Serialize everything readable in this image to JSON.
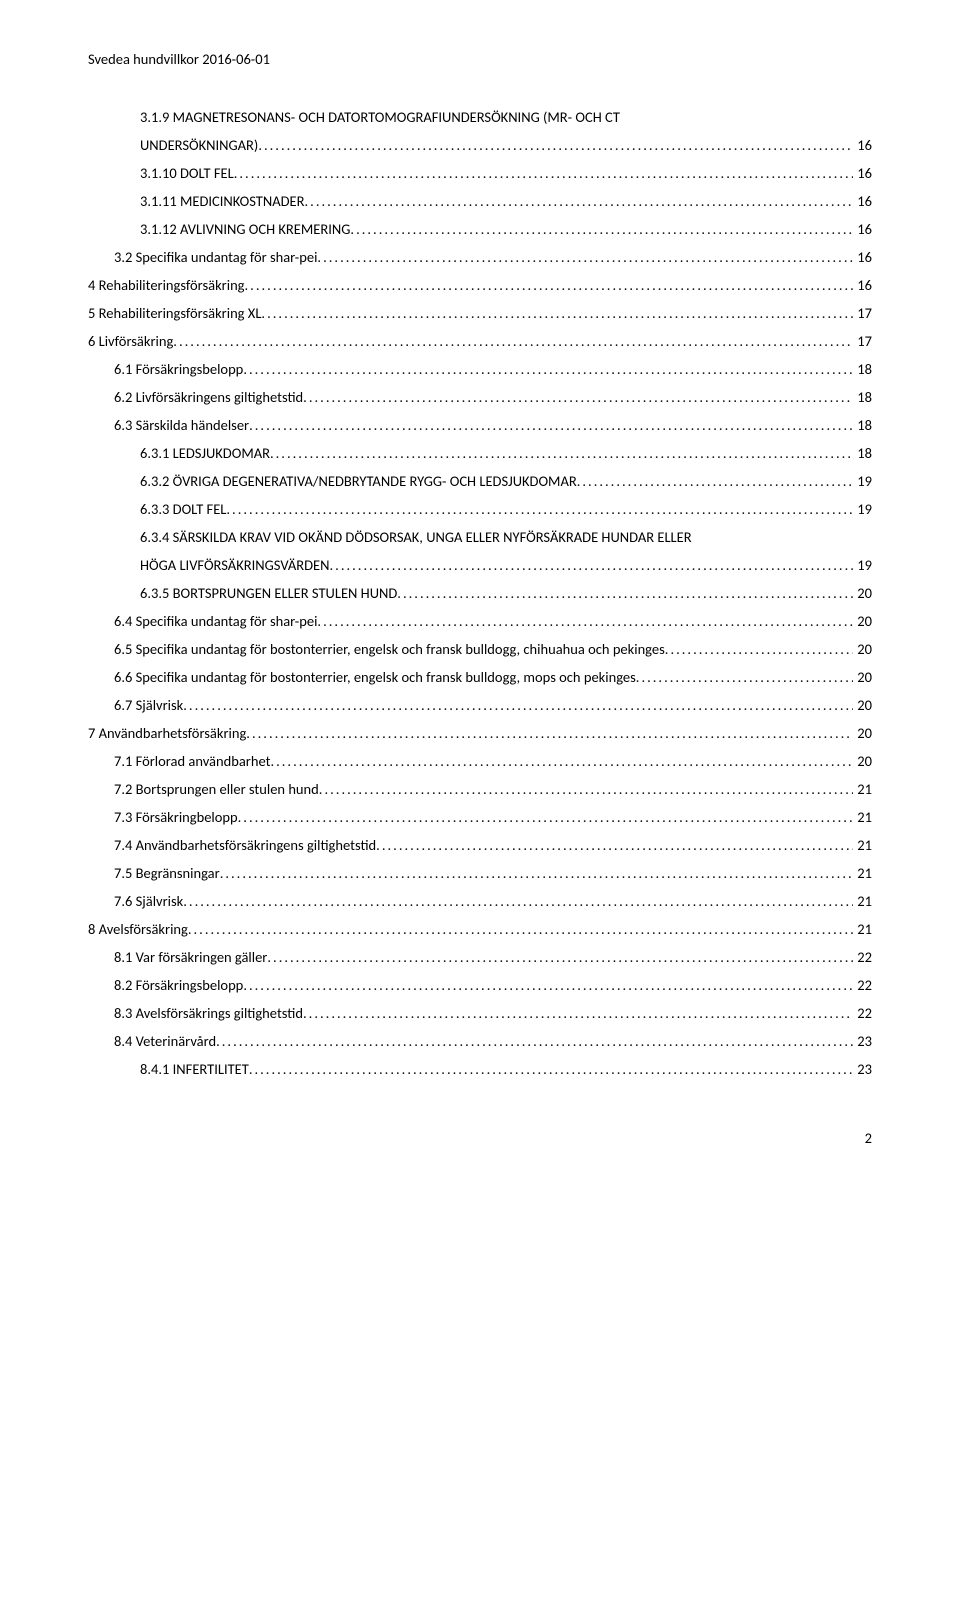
{
  "header": "Svedea hundvillkor 2016-06-01",
  "footer_page": "2",
  "toc": [
    {
      "indent": 2,
      "label": "3.1.9 MAGNETRESONANS- OCH DATORTOMOGRAFIUNDERSÖKNING (MR- OCH CT",
      "label2": "UNDERSÖKNINGAR)",
      "page": "16"
    },
    {
      "indent": 2,
      "label": "3.1.10 DOLT FEL",
      "page": "16"
    },
    {
      "indent": 2,
      "label": "3.1.11 MEDICINKOSTNADER",
      "page": "16"
    },
    {
      "indent": 2,
      "label": "3.1.12 AVLIVNING OCH KREMERING",
      "page": "16"
    },
    {
      "indent": 1,
      "label": "3.2 Specifika undantag för shar-pei",
      "page": "16"
    },
    {
      "indent": 0,
      "label": "4 Rehabiliteringsförsäkring",
      "page": "16"
    },
    {
      "indent": 0,
      "label": "5 Rehabiliteringsförsäkring XL",
      "page": "17"
    },
    {
      "indent": 0,
      "label": "6 Livförsäkring",
      "page": "17"
    },
    {
      "indent": 1,
      "label": "6.1 Försäkringsbelopp",
      "page": "18"
    },
    {
      "indent": 1,
      "label": "6.2 Livförsäkringens giltighetstid",
      "page": "18"
    },
    {
      "indent": 1,
      "label": "6.3 Särskilda händelser",
      "page": "18"
    },
    {
      "indent": 2,
      "label": "6.3.1 LEDSJUKDOMAR",
      "page": "18"
    },
    {
      "indent": 2,
      "label": "6.3.2 ÖVRIGA DEGENERATIVA/NEDBRYTANDE RYGG- OCH LEDSJUKDOMAR",
      "page": "19"
    },
    {
      "indent": 2,
      "label": "6.3.3 DOLT FEL",
      "page": "19"
    },
    {
      "indent": 2,
      "label": "6.3.4 SÄRSKILDA KRAV VID OKÄND DÖDSORSAK, UNGA ELLER NYFÖRSÄKRADE HUNDAR ELLER",
      "label2": "HÖGA LIVFÖRSÄKRINGSVÄRDEN",
      "page": "19"
    },
    {
      "indent": 2,
      "label": "6.3.5 BORTSPRUNGEN ELLER STULEN HUND",
      "page": "20"
    },
    {
      "indent": 1,
      "label": "6.4 Specifika undantag för shar-pei",
      "page": "20"
    },
    {
      "indent": 1,
      "label": "6.5 Specifika undantag för bostonterrier, engelsk och fransk bulldogg, chihuahua och pekinges",
      "page": "20"
    },
    {
      "indent": 1,
      "label": "6.6 Specifika undantag för bostonterrier, engelsk och fransk bulldogg, mops och pekinges",
      "page": "20"
    },
    {
      "indent": 1,
      "label": "6.7 Självrisk",
      "page": "20"
    },
    {
      "indent": 0,
      "label": "7 Användbarhetsförsäkring",
      "page": "20"
    },
    {
      "indent": 1,
      "label": "7.1 Förlorad användbarhet",
      "page": "20"
    },
    {
      "indent": 1,
      "label": "7.2 Bortsprungen eller stulen hund",
      "page": "21"
    },
    {
      "indent": 1,
      "label": "7.3 Försäkringbelopp",
      "page": "21"
    },
    {
      "indent": 1,
      "label": "7.4 Användbarhetsförsäkringens giltighetstid",
      "page": "21"
    },
    {
      "indent": 1,
      "label": "7.5 Begränsningar",
      "page": "21"
    },
    {
      "indent": 1,
      "label": "7.6 Självrisk",
      "page": "21"
    },
    {
      "indent": 0,
      "label": "8 Avelsförsäkring",
      "page": "21"
    },
    {
      "indent": 1,
      "label": "8.1 Var försäkringen gäller",
      "page": "22"
    },
    {
      "indent": 1,
      "label": "8.2 Försäkringsbelopp",
      "page": "22"
    },
    {
      "indent": 1,
      "label": "8.3 Avelsförsäkrings giltighetstid",
      "page": "22"
    },
    {
      "indent": 1,
      "label": "8.4 Veterinärvård",
      "page": "23"
    },
    {
      "indent": 2,
      "label": "8.4.1 INFERTILITET",
      "page": "23"
    }
  ]
}
